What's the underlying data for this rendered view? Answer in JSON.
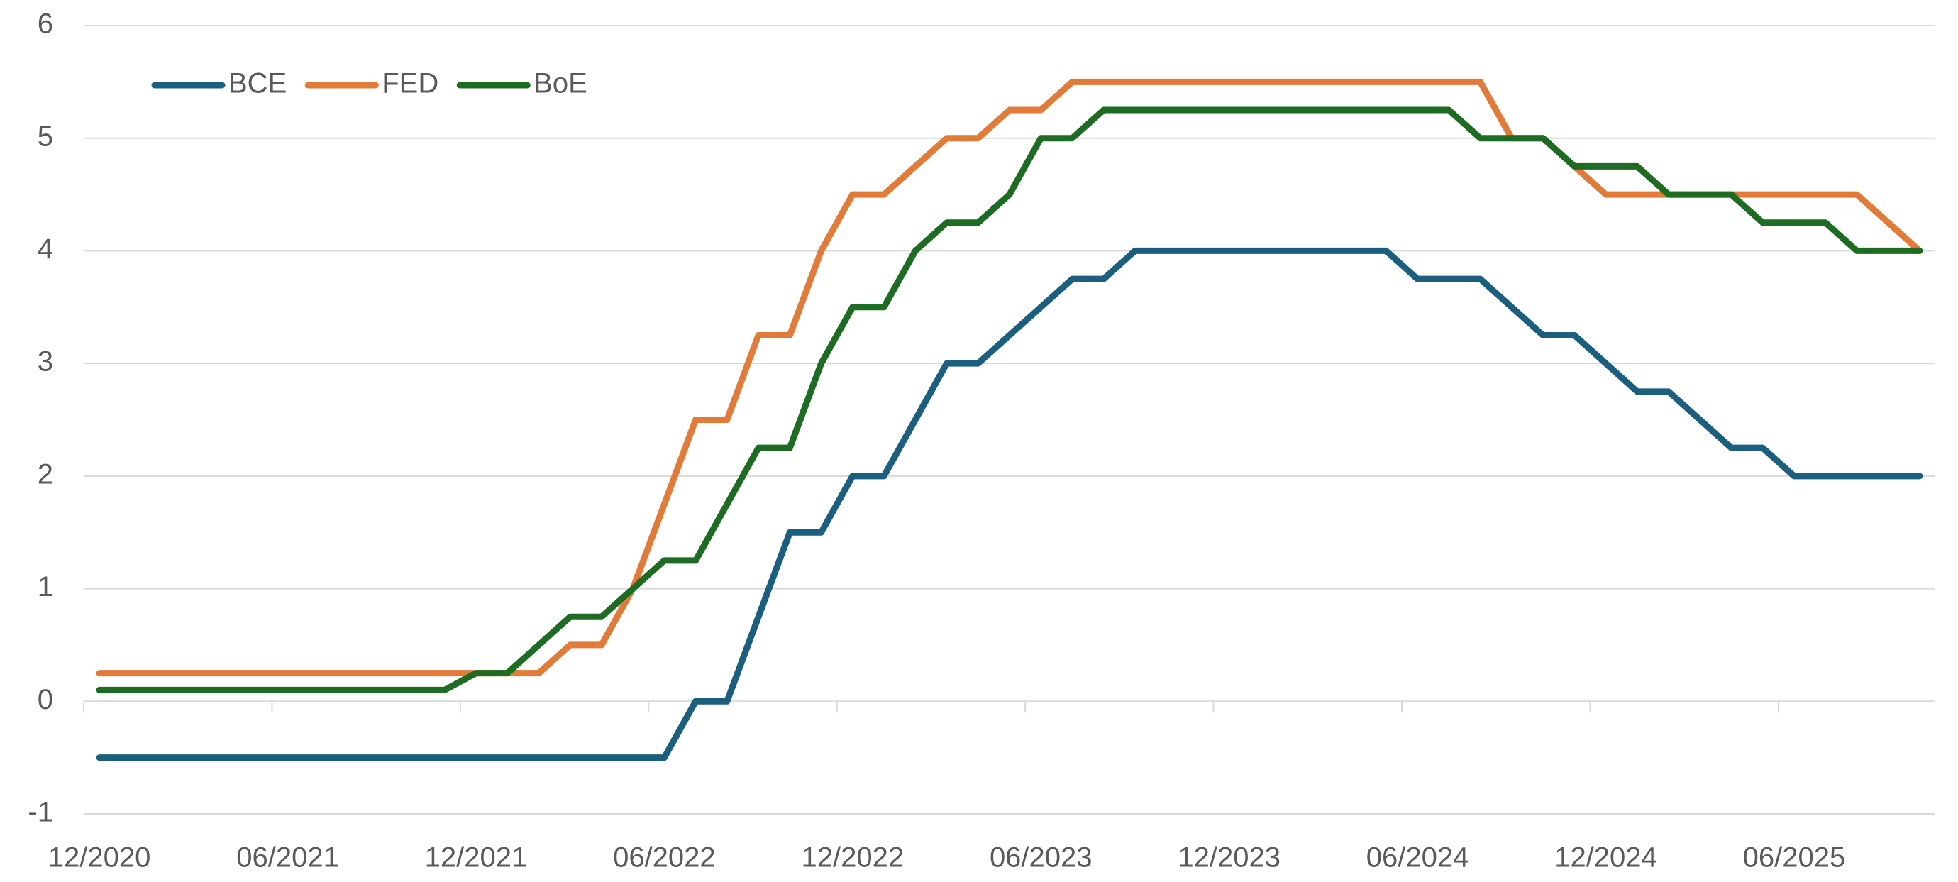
{
  "chart_data": {
    "type": "line",
    "categories": [
      "12/2020",
      null,
      null,
      null,
      null,
      null,
      "06/2021",
      null,
      null,
      null,
      null,
      null,
      "12/2021",
      null,
      null,
      null,
      null,
      null,
      "06/2022",
      null,
      null,
      null,
      null,
      null,
      "12/2022",
      null,
      null,
      null,
      null,
      null,
      "06/2023",
      null,
      null,
      null,
      null,
      null,
      "12/2023",
      null,
      null,
      null,
      null,
      null,
      "06/2024",
      null,
      null,
      null,
      null,
      null,
      "12/2024",
      null,
      null,
      null,
      null,
      null,
      "06/2025",
      null,
      null,
      null,
      null
    ],
    "series": [
      {
        "name": "BCE",
        "color": "#1b5e7e",
        "values": [
          -0.5,
          -0.5,
          -0.5,
          -0.5,
          -0.5,
          -0.5,
          -0.5,
          -0.5,
          -0.5,
          -0.5,
          -0.5,
          -0.5,
          -0.5,
          -0.5,
          -0.5,
          -0.5,
          -0.5,
          -0.5,
          -0.5,
          0,
          0,
          0.75,
          1.5,
          1.5,
          2,
          2,
          2.5,
          3,
          3,
          3.25,
          3.5,
          3.75,
          3.75,
          4,
          4,
          4,
          4,
          4,
          4,
          4,
          4,
          4,
          3.75,
          3.75,
          3.75,
          3.5,
          3.25,
          3.25,
          3,
          2.75,
          2.75,
          2.5,
          2.25,
          2.25,
          2,
          2,
          2,
          2,
          2
        ]
      },
      {
        "name": "FED",
        "color": "#e07b39",
        "values": [
          0.25,
          0.25,
          0.25,
          0.25,
          0.25,
          0.25,
          0.25,
          0.25,
          0.25,
          0.25,
          0.25,
          0.25,
          0.25,
          0.25,
          0.25,
          0.5,
          0.5,
          1,
          1.75,
          2.5,
          2.5,
          3.25,
          3.25,
          4,
          4.5,
          4.5,
          4.75,
          5,
          5,
          5.25,
          5.25,
          5.5,
          5.5,
          5.5,
          5.5,
          5.5,
          5.5,
          5.5,
          5.5,
          5.5,
          5.5,
          5.5,
          5.5,
          5.5,
          5.5,
          5,
          5,
          4.75,
          4.5,
          4.5,
          4.5,
          4.5,
          4.5,
          4.5,
          4.5,
          4.5,
          4.5,
          4.25,
          4
        ]
      },
      {
        "name": "BoE",
        "color": "#1e6b23",
        "values": [
          0.1,
          0.1,
          0.1,
          0.1,
          0.1,
          0.1,
          0.1,
          0.1,
          0.1,
          0.1,
          0.1,
          0.1,
          0.25,
          0.25,
          0.5,
          0.75,
          0.75,
          1,
          1.25,
          1.25,
          1.75,
          2.25,
          2.25,
          3,
          3.5,
          3.5,
          4,
          4.25,
          4.25,
          4.5,
          5,
          5,
          5.25,
          5.25,
          5.25,
          5.25,
          5.25,
          5.25,
          5.25,
          5.25,
          5.25,
          5.25,
          5.25,
          5.25,
          5,
          5,
          5,
          4.75,
          4.75,
          4.75,
          4.5,
          4.5,
          4.5,
          4.25,
          4.25,
          4.25,
          4,
          4,
          4
        ]
      }
    ],
    "ylim": [
      -1,
      6
    ],
    "yticks": [
      -1,
      0,
      1,
      2,
      3,
      4,
      5,
      6
    ],
    "grid": true,
    "legend": "upper left"
  }
}
